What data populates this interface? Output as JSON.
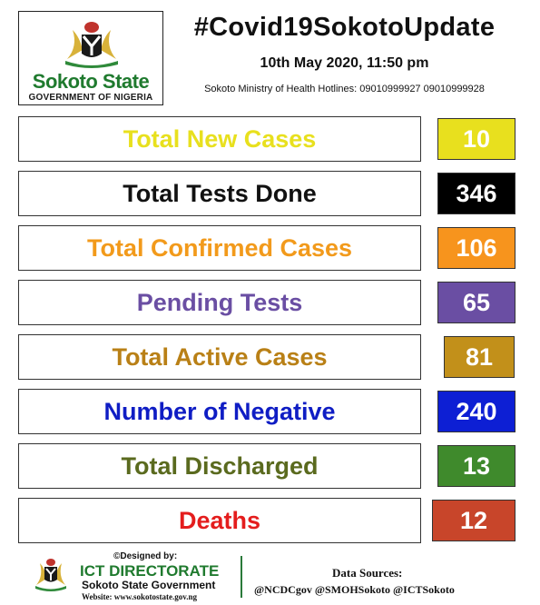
{
  "header": {
    "state_name": "Sokoto State",
    "government": "GOVERNMENT OF NIGERIA",
    "hashtag": "#Covid19SokotoUpdate",
    "date": "10th May 2020, 11:50 pm",
    "hotlines": "Sokoto Ministry of Health Hotlines: 09010999927 09010999928"
  },
  "stats": [
    {
      "label": "Total New Cases",
      "value": "10",
      "label_color": "#e8e01e",
      "box_color": "#e8e01e",
      "value_color": "#ffffff"
    },
    {
      "label": "Total Tests Done",
      "value": "346",
      "label_color": "#111111",
      "box_color": "#000000",
      "value_color": "#ffffff"
    },
    {
      "label": "Total Confirmed Cases",
      "value": "106",
      "label_color": "#f29a1b",
      "box_color": "#f7941d",
      "value_color": "#ffffff"
    },
    {
      "label": "Pending Tests",
      "value": "65",
      "label_color": "#6a4ea3",
      "box_color": "#6a4ea3",
      "value_color": "#ffffff"
    },
    {
      "label": "Total Active Cases",
      "value": "81",
      "label_color": "#b98016",
      "box_color": "#c2901a",
      "value_color": "#ffffff"
    },
    {
      "label": "Number of Negative",
      "value": "240",
      "label_color": "#0f1dc4",
      "box_color": "#0d1fd4",
      "value_color": "#ffffff"
    },
    {
      "label": "Total Discharged",
      "value": "13",
      "label_color": "#5a6a1e",
      "box_color": "#3f8a2c",
      "value_color": "#ffffff"
    },
    {
      "label": "Deaths",
      "value": "12",
      "label_color": "#e41d1d",
      "box_color": "#c8452a",
      "value_color": "#ffffff"
    }
  ],
  "footer": {
    "designed_by": "©Designed by:",
    "directorate": "ICT DIRECTORATE",
    "government": "Sokoto State Government",
    "website": "Website: www.sokotostate.gov.ng",
    "sources_title": "Data Sources:",
    "sources": "@NCDCgov @SMOHSokoto @ICTSokoto"
  }
}
